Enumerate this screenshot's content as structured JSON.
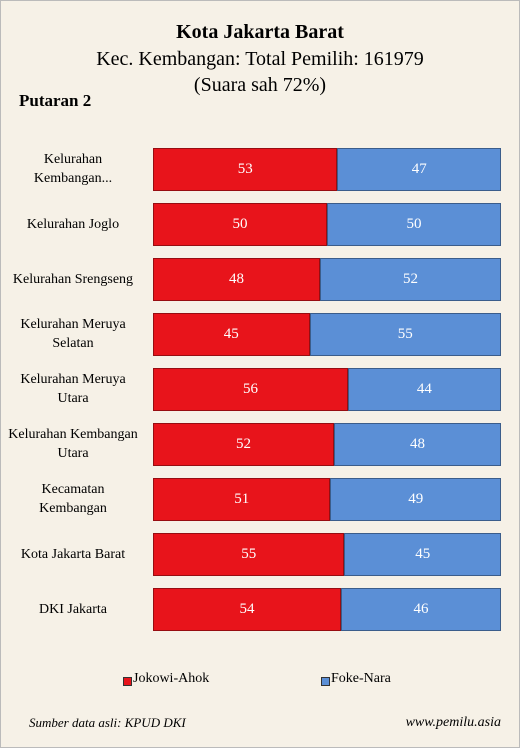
{
  "chart_data": {
    "type": "stacked-barh",
    "title": "Kota Jakarta Barat",
    "subtitle": [
      "Kec. Kembangan: Total Pemilih: 161979",
      "(Suara sah 72%)"
    ],
    "label": "Putaran 2",
    "categories": [
      "Kelurahan Kembangan...",
      "Kelurahan Joglo",
      "Kelurahan Srengseng",
      "Kelurahan Meruya Selatan",
      "Kelurahan Meruya Utara",
      "Kelurahan Kembangan Utara",
      "Kecamatan Kembangan",
      "Kota Jakarta Barat",
      "DKI Jakarta"
    ],
    "series": [
      {
        "name": "Jokowi-Ahok",
        "color": "#e8141b",
        "values": [
          53,
          50,
          48,
          45,
          56,
          52,
          51,
          55,
          54
        ]
      },
      {
        "name": "Foke-Nara",
        "color": "#5b8fd6",
        "values": [
          47,
          50,
          52,
          55,
          44,
          48,
          49,
          45,
          46
        ]
      }
    ],
    "xlim": [
      0,
      100
    ],
    "source": "Sumber data asli: KPUD DKI",
    "website": "www.pemilu.asia"
  }
}
